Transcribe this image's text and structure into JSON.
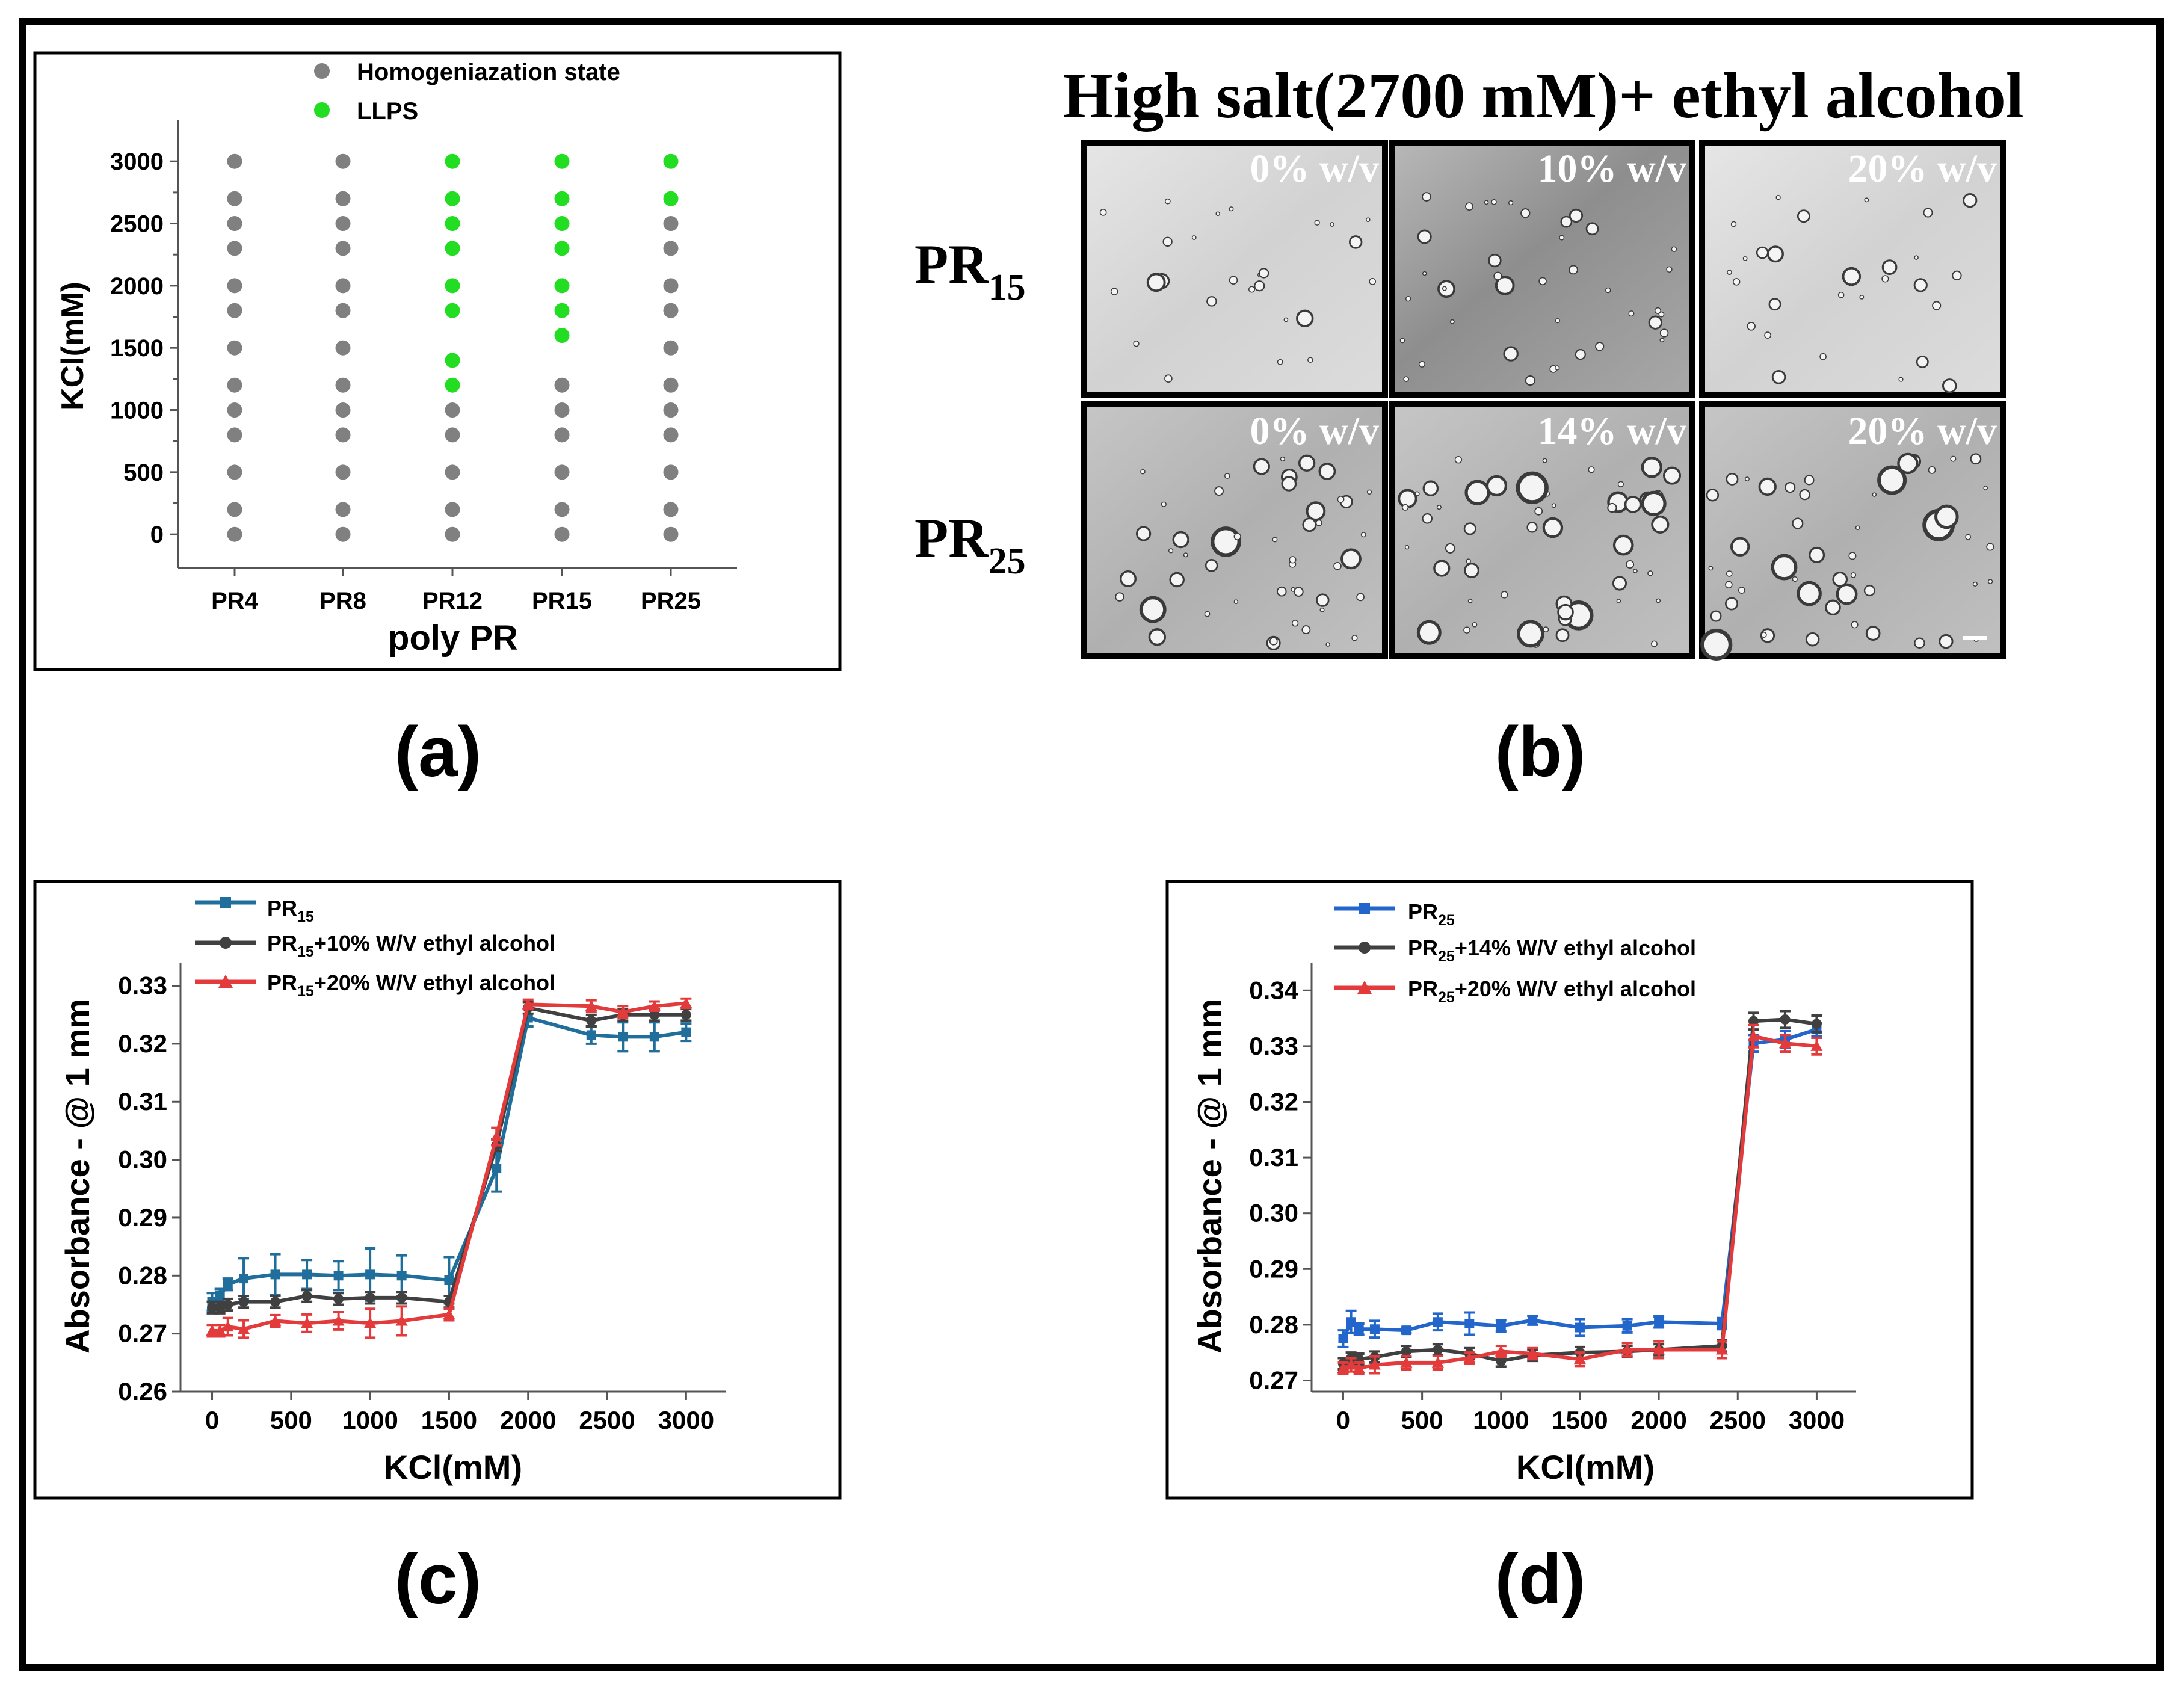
{
  "panels": {
    "a": {
      "label": "(a)",
      "legend": [
        "Homogeniazation state",
        "LLPS"
      ],
      "xlabel": "poly PR",
      "ylabel": "KCl(mM)",
      "categories": [
        "PR4",
        "PR8",
        "PR12",
        "PR15",
        "PR25"
      ],
      "yticks": [
        "0",
        "500",
        "1000",
        "1500",
        "2000",
        "2500",
        "3000"
      ],
      "ylim": [
        -270,
        3330
      ],
      "colors": {
        "homogeneous": "#808080",
        "llps": "#22dd22"
      }
    },
    "b": {
      "label": "(b)",
      "title": "High salt(2700 mM)+ ethyl alcohol",
      "rows": [
        {
          "name": "PR",
          "sub": "15",
          "cells": [
            "0% w/v",
            "10% w/v",
            "20% w/v"
          ]
        },
        {
          "name": "PR",
          "sub": "25",
          "cells": [
            "0% w/v",
            "14% w/v",
            "20% w/v"
          ]
        }
      ]
    },
    "c": {
      "label": "(c)",
      "legend": [
        {
          "pre": "PR",
          "sub": "15",
          "post": ""
        },
        {
          "pre": "PR",
          "sub": "15",
          "post": "+10% W/V ethyl alcohol"
        },
        {
          "pre": "PR",
          "sub": "15",
          "post": "+20% W/V ethyl alcohol"
        }
      ],
      "xlabel": "KCl(mM)",
      "ylabel": "Absorbance - @ 1 mm",
      "xticks": [
        "0",
        "500",
        "1000",
        "1500",
        "2000",
        "2500",
        "3000"
      ],
      "yticks": [
        "0.26",
        "0.27",
        "0.28",
        "0.29",
        "0.30",
        "0.31",
        "0.32",
        "0.33"
      ]
    },
    "d": {
      "label": "(d)",
      "legend": [
        {
          "pre": "PR",
          "sub": "25",
          "post": ""
        },
        {
          "pre": "PR",
          "sub": "25",
          "post": "+14% W/V ethyl alcohol"
        },
        {
          "pre": "PR",
          "sub": "25",
          "post": "+20% W/V ethyl alcohol"
        }
      ],
      "xlabel": "KCl(mM)",
      "ylabel": "Absorbance - @ 1 mm",
      "xticks": [
        "0",
        "500",
        "1000",
        "1500",
        "2000",
        "2500",
        "3000"
      ],
      "yticks": [
        "0.27",
        "0.28",
        "0.29",
        "0.30",
        "0.31",
        "0.32",
        "0.33",
        "0.34"
      ]
    }
  },
  "chart_data": [
    {
      "type": "scatter",
      "panel": "a",
      "xlabel": "poly PR",
      "ylabel": "KCl(mM)",
      "categories": [
        "PR4",
        "PR8",
        "PR12",
        "PR15",
        "PR25"
      ],
      "y_levels": [
        0,
        200,
        500,
        800,
        1000,
        1200,
        1500,
        1800,
        2000,
        2300,
        2500,
        2700,
        3000
      ],
      "series": [
        {
          "name": "Homogeniazation state",
          "color": "#808080",
          "points": [
            [
              "PR4",
              0
            ],
            [
              "PR4",
              200
            ],
            [
              "PR4",
              500
            ],
            [
              "PR4",
              800
            ],
            [
              "PR4",
              1000
            ],
            [
              "PR4",
              1200
            ],
            [
              "PR4",
              1500
            ],
            [
              "PR4",
              1800
            ],
            [
              "PR4",
              2000
            ],
            [
              "PR4",
              2300
            ],
            [
              "PR4",
              2500
            ],
            [
              "PR4",
              2700
            ],
            [
              "PR4",
              3000
            ],
            [
              "PR8",
              0
            ],
            [
              "PR8",
              200
            ],
            [
              "PR8",
              500
            ],
            [
              "PR8",
              800
            ],
            [
              "PR8",
              1000
            ],
            [
              "PR8",
              1200
            ],
            [
              "PR8",
              1500
            ],
            [
              "PR8",
              1800
            ],
            [
              "PR8",
              2000
            ],
            [
              "PR8",
              2300
            ],
            [
              "PR8",
              2500
            ],
            [
              "PR8",
              2700
            ],
            [
              "PR8",
              3000
            ],
            [
              "PR12",
              0
            ],
            [
              "PR12",
              200
            ],
            [
              "PR12",
              500
            ],
            [
              "PR12",
              800
            ],
            [
              "PR12",
              1000
            ],
            [
              "PR15",
              0
            ],
            [
              "PR15",
              200
            ],
            [
              "PR15",
              500
            ],
            [
              "PR15",
              800
            ],
            [
              "PR15",
              1000
            ],
            [
              "PR15",
              1200
            ],
            [
              "PR25",
              0
            ],
            [
              "PR25",
              200
            ],
            [
              "PR25",
              500
            ],
            [
              "PR25",
              800
            ],
            [
              "PR25",
              1000
            ],
            [
              "PR25",
              1200
            ],
            [
              "PR25",
              1500
            ],
            [
              "PR25",
              1800
            ],
            [
              "PR25",
              2000
            ],
            [
              "PR25",
              2300
            ],
            [
              "PR25",
              2500
            ]
          ]
        },
        {
          "name": "LLPS",
          "color": "#22dd22",
          "points": [
            [
              "PR12",
              1200
            ],
            [
              "PR12",
              1400
            ],
            [
              "PR12",
              1800
            ],
            [
              "PR12",
              2000
            ],
            [
              "PR12",
              2300
            ],
            [
              "PR12",
              2500
            ],
            [
              "PR12",
              2700
            ],
            [
              "PR12",
              3000
            ],
            [
              "PR15",
              1600
            ],
            [
              "PR15",
              1800
            ],
            [
              "PR15",
              2000
            ],
            [
              "PR15",
              2300
            ],
            [
              "PR15",
              2500
            ],
            [
              "PR15",
              2700
            ],
            [
              "PR15",
              3000
            ],
            [
              "PR25",
              2700
            ],
            [
              "PR25",
              3000
            ]
          ]
        }
      ]
    },
    {
      "type": "line",
      "panel": "c",
      "xlabel": "KCl(mM)",
      "ylabel": "Absorbance - @ 1 mm",
      "xlim": [
        -200,
        3250
      ],
      "ylim": [
        0.26,
        0.334
      ],
      "x": [
        0,
        50,
        100,
        200,
        400,
        600,
        800,
        1000,
        1200,
        1500,
        1800,
        2000,
        2400,
        2600,
        2800,
        3000
      ],
      "series": [
        {
          "name": "PR15",
          "color": "#1f6e9c",
          "marker": "square",
          "y": [
            0.2755,
            0.2765,
            0.2785,
            0.2795,
            0.2802,
            0.2802,
            0.28,
            0.2802,
            0.28,
            0.2792,
            0.2985,
            0.3245,
            0.3215,
            0.3212,
            0.3212,
            0.322
          ],
          "err": [
            0.0015,
            0.0012,
            0.001,
            0.0035,
            0.0035,
            0.0025,
            0.0025,
            0.0045,
            0.0035,
            0.004,
            0.004,
            0.0015,
            0.0015,
            0.0025,
            0.0025,
            0.0015
          ]
        },
        {
          "name": "PR15+10% W/V ethyl alcohol",
          "color": "#404040",
          "marker": "circle",
          "y": [
            0.2745,
            0.2745,
            0.275,
            0.2755,
            0.2755,
            0.2765,
            0.276,
            0.2762,
            0.2762,
            0.2755,
            0.3025,
            0.3262,
            0.324,
            0.325,
            0.325,
            0.325
          ],
          "err": [
            0.001,
            0.001,
            0.001,
            0.001,
            0.001,
            0.001,
            0.001,
            0.001,
            0.001,
            0.001,
            0.001,
            0.001,
            0.001,
            0.001,
            0.001,
            0.001
          ]
        },
        {
          "name": "PR15+20% W/V ethyl alcohol",
          "color": "#e33b3b",
          "marker": "triangle",
          "y": [
            0.2705,
            0.2705,
            0.2712,
            0.2708,
            0.2722,
            0.2718,
            0.2722,
            0.2718,
            0.2722,
            0.2733,
            0.304,
            0.3268,
            0.3265,
            0.3255,
            0.3265,
            0.327
          ],
          "err": [
            0.001,
            0.001,
            0.0015,
            0.0015,
            0.001,
            0.0015,
            0.0015,
            0.0025,
            0.0025,
            0.001,
            0.0015,
            0.0008,
            0.001,
            0.001,
            0.0008,
            0.0008
          ]
        }
      ]
    },
    {
      "type": "line",
      "panel": "d",
      "xlabel": "KCl(mM)",
      "ylabel": "Absorbance - @ 1 mm",
      "xlim": [
        -200,
        3250
      ],
      "ylim": [
        0.268,
        0.345
      ],
      "x": [
        0,
        50,
        100,
        200,
        400,
        600,
        800,
        1000,
        1200,
        1500,
        1800,
        2000,
        2400,
        2600,
        2800,
        3000
      ],
      "series": [
        {
          "name": "PR25",
          "color": "#2266cc",
          "marker": "square",
          "y": [
            0.2775,
            0.2805,
            0.2792,
            0.2792,
            0.279,
            0.2805,
            0.2802,
            0.2798,
            0.2808,
            0.2795,
            0.2798,
            0.2805,
            0.2802,
            0.3305,
            0.3312,
            0.333
          ],
          "err": [
            0.0015,
            0.002,
            0.001,
            0.0015,
            0.0005,
            0.0015,
            0.002,
            0.001,
            0.0008,
            0.0015,
            0.0012,
            0.001,
            0.001,
            0.0015,
            0.0015,
            0.0012
          ]
        },
        {
          "name": "PR25+14% W/V ethyl alcohol",
          "color": "#404040",
          "marker": "circle",
          "y": [
            0.273,
            0.274,
            0.2738,
            0.2742,
            0.2752,
            0.2755,
            0.2748,
            0.2735,
            0.2745,
            0.275,
            0.2752,
            0.2755,
            0.2762,
            0.3345,
            0.3348,
            0.334
          ],
          "err": [
            0.001,
            0.001,
            0.001,
            0.001,
            0.001,
            0.001,
            0.001,
            0.001,
            0.001,
            0.001,
            0.001,
            0.001,
            0.001,
            0.0015,
            0.0015,
            0.0015
          ]
        },
        {
          "name": "PR25+20% W/V ethyl alcohol",
          "color": "#e33b3b",
          "marker": "triangle",
          "y": [
            0.2722,
            0.2728,
            0.2722,
            0.2728,
            0.2732,
            0.2732,
            0.274,
            0.2752,
            0.2748,
            0.2738,
            0.2755,
            0.2755,
            0.2755,
            0.3318,
            0.3305,
            0.33
          ],
          "err": [
            0.001,
            0.0012,
            0.001,
            0.0015,
            0.0012,
            0.0012,
            0.001,
            0.001,
            0.001,
            0.0012,
            0.0012,
            0.0015,
            0.0015,
            0.002,
            0.0015,
            0.0015
          ]
        }
      ]
    }
  ]
}
